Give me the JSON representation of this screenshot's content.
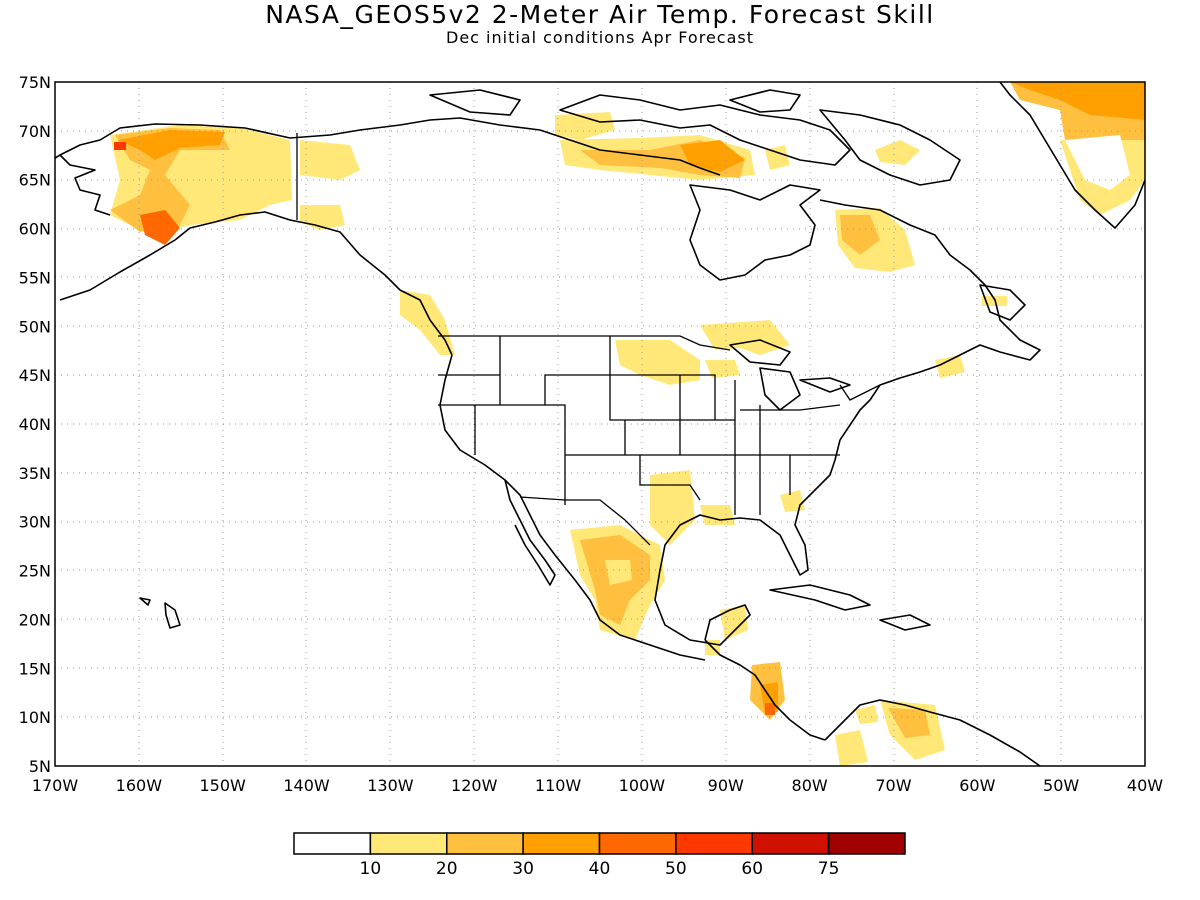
{
  "title": "NASA_GEOS5v2 2-Meter Air Temp. Forecast Skill",
  "subtitle": "Dec initial conditions  Apr Forecast",
  "map": {
    "lon_range": [
      -170,
      -40
    ],
    "lat_range": [
      5,
      75
    ],
    "lon_ticks": [
      "170W",
      "160W",
      "150W",
      "140W",
      "130W",
      "120W",
      "110W",
      "100W",
      "90W",
      "80W",
      "70W",
      "60W",
      "50W",
      "40W"
    ],
    "lat_ticks": [
      "5N",
      "10N",
      "15N",
      "20N",
      "25N",
      "30N",
      "35N",
      "40N",
      "45N",
      "50N",
      "55N",
      "60N",
      "65N",
      "70N",
      "75N"
    ],
    "gridlines": "dotted"
  },
  "colorbar": {
    "labels": [
      "10",
      "20",
      "30",
      "40",
      "50",
      "60",
      "75"
    ],
    "colors": [
      "#ffffff",
      "#ffe878",
      "#ffc040",
      "#ffa000",
      "#ff6800",
      "#ff3800",
      "#d01000",
      "#a00000"
    ]
  }
}
